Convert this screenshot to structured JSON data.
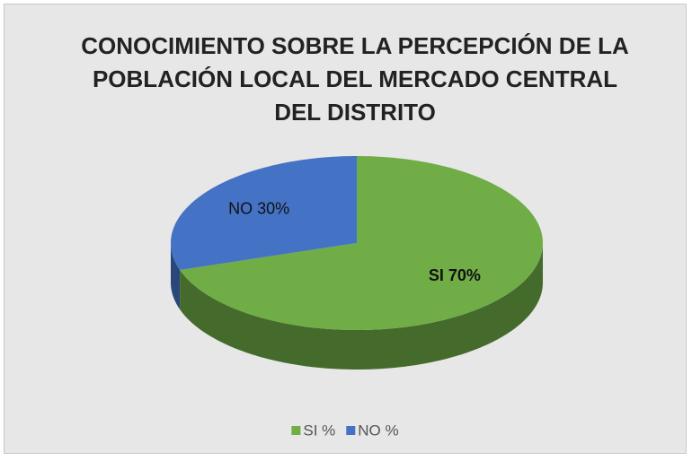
{
  "chart_data": {
    "type": "pie3d",
    "title": "CONOCIMIENTO SOBRE LA PERCEPCIÓN DE LA POBLACIÓN LOCAL DEL MERCADO CENTRAL DEL DISTRITO",
    "categories": [
      "SI %",
      "NO %"
    ],
    "values": [
      70,
      30
    ],
    "value_labels": [
      "SI 70%",
      "NO 30%"
    ],
    "colors": [
      "#70ad47",
      "#4472c4"
    ],
    "legend": "bottom"
  }
}
